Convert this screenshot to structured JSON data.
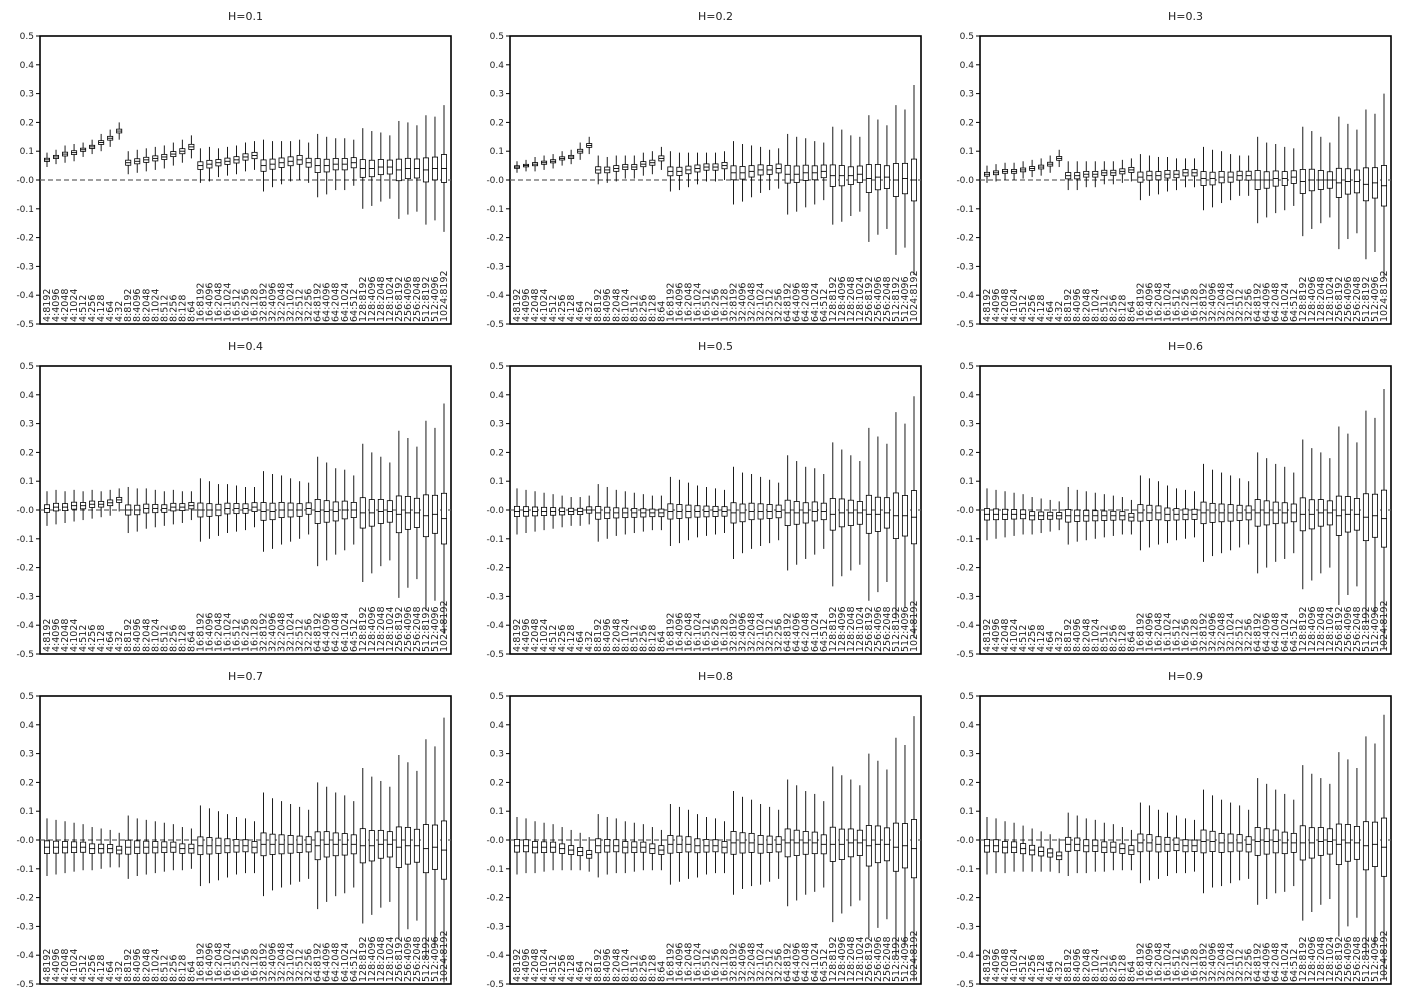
{
  "figure": {
    "background": "#ffffff",
    "ink_color": "#000000",
    "zero_line_color": "#666666"
  },
  "chart_data": {
    "type": "boxplot",
    "grid": false,
    "legend": "none",
    "ylim": [
      -0.5,
      0.5
    ],
    "yticks": [
      -0.5,
      -0.4,
      -0.3,
      -0.2,
      -0.1,
      0.0,
      0.1,
      0.2,
      0.3,
      0.4,
      0.5
    ],
    "ytick_labels": [
      "-0.5",
      "-0.4",
      "-0.3",
      "-0.2",
      "-0.1",
      "-0.0",
      "0.1",
      "0.2",
      "0.3",
      "0.4",
      "0.5"
    ],
    "reference_line": {
      "y": 0.0,
      "style": "dashed"
    },
    "categories": [
      "4:8192",
      "4:4096",
      "4:2048",
      "4:1024",
      "4:512",
      "4:256",
      "4:128",
      "4:64",
      "4:32",
      "8:8192",
      "8:4096",
      "8:2048",
      "8:1024",
      "8:512",
      "8:256",
      "8:128",
      "8:64",
      "16:8192",
      "16:4096",
      "16:2048",
      "16:1024",
      "16:512",
      "16:256",
      "16:128",
      "32:8192",
      "32:4096",
      "32:2048",
      "32:1024",
      "32:512",
      "32:256",
      "64:8192",
      "64:4096",
      "64:2048",
      "64:1024",
      "64:512",
      "128:8192",
      "128:4096",
      "128:2048",
      "128:1024",
      "256:8192",
      "256:4096",
      "256:2048",
      "512:8192",
      "512:4096",
      "1024:8192"
    ],
    "panels": [
      {
        "title": "H=0.1",
        "medians": [
          0.07,
          0.08,
          0.09,
          0.095,
          0.105,
          0.115,
          0.13,
          0.145,
          0.17,
          0.06,
          0.065,
          0.07,
          0.075,
          0.08,
          0.09,
          0.1,
          0.115,
          0.05,
          0.055,
          0.06,
          0.065,
          0.07,
          0.08,
          0.085,
          0.05,
          0.055,
          0.06,
          0.065,
          0.07,
          0.06,
          0.05,
          0.05,
          0.055,
          0.055,
          0.06,
          0.04,
          0.04,
          0.045,
          0.045,
          0.035,
          0.04,
          0.04,
          0.035,
          0.04,
          0.04
        ],
        "spreads": [
          0.025,
          0.025,
          0.03,
          0.03,
          0.025,
          0.025,
          0.03,
          0.03,
          0.03,
          0.04,
          0.04,
          0.04,
          0.04,
          0.04,
          0.04,
          0.04,
          0.04,
          0.06,
          0.06,
          0.05,
          0.05,
          0.05,
          0.05,
          0.05,
          0.09,
          0.08,
          0.075,
          0.07,
          0.07,
          0.07,
          0.11,
          0.1,
          0.09,
          0.09,
          0.08,
          0.14,
          0.13,
          0.12,
          0.11,
          0.17,
          0.16,
          0.15,
          0.19,
          0.18,
          0.22
        ]
      },
      {
        "title": "H=0.2",
        "medians": [
          0.045,
          0.05,
          0.055,
          0.06,
          0.065,
          0.075,
          0.08,
          0.1,
          0.12,
          0.035,
          0.035,
          0.04,
          0.045,
          0.045,
          0.055,
          0.06,
          0.075,
          0.03,
          0.03,
          0.035,
          0.04,
          0.045,
          0.045,
          0.05,
          0.025,
          0.025,
          0.03,
          0.035,
          0.035,
          0.04,
          0.02,
          0.02,
          0.025,
          0.025,
          0.03,
          0.015,
          0.015,
          0.015,
          0.02,
          0.005,
          0.01,
          0.01,
          0.0,
          0.005,
          0.0
        ],
        "spreads": [
          0.02,
          0.02,
          0.025,
          0.025,
          0.025,
          0.025,
          0.025,
          0.03,
          0.03,
          0.05,
          0.045,
          0.045,
          0.04,
          0.04,
          0.04,
          0.04,
          0.04,
          0.07,
          0.065,
          0.06,
          0.055,
          0.05,
          0.05,
          0.05,
          0.11,
          0.1,
          0.09,
          0.08,
          0.07,
          0.07,
          0.14,
          0.13,
          0.12,
          0.11,
          0.1,
          0.17,
          0.16,
          0.14,
          0.13,
          0.22,
          0.2,
          0.18,
          0.26,
          0.24,
          0.33
        ]
      },
      {
        "title": "H=0.3",
        "medians": [
          0.02,
          0.025,
          0.03,
          0.03,
          0.035,
          0.04,
          0.045,
          0.055,
          0.075,
          0.015,
          0.015,
          0.02,
          0.02,
          0.025,
          0.025,
          0.03,
          0.035,
          0.01,
          0.015,
          0.015,
          0.02,
          0.02,
          0.025,
          0.025,
          0.005,
          0.005,
          0.01,
          0.01,
          0.015,
          0.015,
          0.0,
          0.0,
          0.005,
          0.005,
          0.01,
          -0.005,
          0.0,
          0.0,
          0.0,
          -0.01,
          -0.005,
          -0.005,
          -0.015,
          -0.01,
          -0.02
        ],
        "spreads": [
          0.03,
          0.03,
          0.03,
          0.03,
          0.03,
          0.03,
          0.03,
          0.03,
          0.03,
          0.05,
          0.05,
          0.045,
          0.045,
          0.04,
          0.04,
          0.04,
          0.04,
          0.08,
          0.07,
          0.065,
          0.06,
          0.055,
          0.05,
          0.05,
          0.11,
          0.1,
          0.09,
          0.08,
          0.07,
          0.07,
          0.15,
          0.13,
          0.12,
          0.11,
          0.1,
          0.19,
          0.17,
          0.15,
          0.13,
          0.23,
          0.2,
          0.18,
          0.26,
          0.24,
          0.32
        ]
      },
      {
        "title": "H=0.4",
        "medians": [
          0.005,
          0.01,
          0.01,
          0.015,
          0.015,
          0.02,
          0.02,
          0.025,
          0.035,
          0.0,
          0.0,
          0.005,
          0.005,
          0.005,
          0.01,
          0.01,
          0.015,
          0.0,
          0.0,
          0.0,
          0.005,
          0.005,
          0.005,
          0.01,
          -0.005,
          -0.005,
          0.0,
          0.0,
          0.0,
          0.005,
          -0.005,
          -0.005,
          -0.005,
          0.0,
          0.0,
          -0.01,
          -0.01,
          -0.005,
          -0.005,
          -0.015,
          -0.01,
          -0.01,
          -0.02,
          -0.015,
          -0.03
        ],
        "spreads": [
          0.06,
          0.06,
          0.055,
          0.055,
          0.05,
          0.05,
          0.045,
          0.045,
          0.04,
          0.08,
          0.075,
          0.07,
          0.065,
          0.06,
          0.06,
          0.055,
          0.05,
          0.11,
          0.1,
          0.09,
          0.085,
          0.08,
          0.075,
          0.07,
          0.14,
          0.13,
          0.12,
          0.11,
          0.1,
          0.09,
          0.19,
          0.17,
          0.15,
          0.14,
          0.12,
          0.24,
          0.21,
          0.19,
          0.17,
          0.29,
          0.26,
          0.23,
          0.33,
          0.3,
          0.4
        ]
      },
      {
        "title": "H=0.5",
        "medians": [
          -0.005,
          -0.005,
          -0.005,
          -0.005,
          -0.005,
          -0.005,
          -0.005,
          -0.005,
          0.0,
          -0.01,
          -0.01,
          -0.01,
          -0.01,
          -0.01,
          -0.01,
          -0.01,
          -0.01,
          -0.005,
          -0.005,
          -0.005,
          -0.005,
          -0.005,
          -0.005,
          -0.005,
          -0.01,
          -0.01,
          -0.005,
          -0.005,
          -0.005,
          -0.005,
          -0.01,
          -0.01,
          -0.01,
          -0.005,
          -0.005,
          -0.015,
          -0.01,
          -0.01,
          -0.01,
          -0.015,
          -0.015,
          -0.01,
          -0.02,
          -0.02,
          -0.025
        ],
        "spreads": [
          0.08,
          0.075,
          0.07,
          0.065,
          0.06,
          0.055,
          0.05,
          0.05,
          0.05,
          0.1,
          0.09,
          0.08,
          0.075,
          0.07,
          0.065,
          0.06,
          0.06,
          0.12,
          0.11,
          0.1,
          0.09,
          0.085,
          0.08,
          0.075,
          0.16,
          0.14,
          0.13,
          0.12,
          0.11,
          0.1,
          0.2,
          0.18,
          0.16,
          0.15,
          0.13,
          0.25,
          0.22,
          0.2,
          0.18,
          0.3,
          0.27,
          0.24,
          0.36,
          0.32,
          0.42
        ]
      },
      {
        "title": "H=0.6",
        "medians": [
          -0.015,
          -0.015,
          -0.015,
          -0.015,
          -0.015,
          -0.02,
          -0.02,
          -0.02,
          -0.02,
          -0.02,
          -0.02,
          -0.02,
          -0.02,
          -0.02,
          -0.02,
          -0.02,
          -0.025,
          -0.01,
          -0.01,
          -0.01,
          -0.015,
          -0.015,
          -0.015,
          -0.015,
          -0.01,
          -0.01,
          -0.01,
          -0.01,
          -0.01,
          -0.01,
          -0.01,
          -0.01,
          -0.01,
          -0.01,
          -0.01,
          -0.015,
          -0.015,
          -0.01,
          -0.01,
          -0.02,
          -0.015,
          -0.015,
          -0.025,
          -0.02,
          -0.03
        ],
        "spreads": [
          0.09,
          0.085,
          0.08,
          0.075,
          0.07,
          0.065,
          0.06,
          0.055,
          0.05,
          0.1,
          0.09,
          0.085,
          0.08,
          0.075,
          0.07,
          0.065,
          0.06,
          0.13,
          0.12,
          0.11,
          0.1,
          0.09,
          0.085,
          0.08,
          0.17,
          0.15,
          0.14,
          0.13,
          0.12,
          0.11,
          0.21,
          0.19,
          0.17,
          0.16,
          0.14,
          0.26,
          0.23,
          0.21,
          0.19,
          0.31,
          0.28,
          0.25,
          0.37,
          0.34,
          0.45
        ]
      },
      {
        "title": "H=0.7",
        "medians": [
          -0.025,
          -0.025,
          -0.025,
          -0.025,
          -0.025,
          -0.03,
          -0.03,
          -0.03,
          -0.035,
          -0.025,
          -0.025,
          -0.025,
          -0.025,
          -0.025,
          -0.025,
          -0.03,
          -0.03,
          -0.02,
          -0.02,
          -0.02,
          -0.02,
          -0.02,
          -0.02,
          -0.025,
          -0.015,
          -0.015,
          -0.015,
          -0.015,
          -0.015,
          -0.015,
          -0.02,
          -0.015,
          -0.015,
          -0.015,
          -0.015,
          -0.02,
          -0.02,
          -0.015,
          -0.015,
          -0.025,
          -0.02,
          -0.02,
          -0.03,
          -0.025,
          -0.035
        ],
        "spreads": [
          0.1,
          0.095,
          0.09,
          0.085,
          0.08,
          0.075,
          0.07,
          0.065,
          0.06,
          0.11,
          0.1,
          0.095,
          0.09,
          0.085,
          0.08,
          0.075,
          0.07,
          0.14,
          0.13,
          0.12,
          0.11,
          0.1,
          0.095,
          0.09,
          0.18,
          0.16,
          0.15,
          0.14,
          0.13,
          0.12,
          0.22,
          0.2,
          0.18,
          0.17,
          0.15,
          0.27,
          0.24,
          0.22,
          0.2,
          0.32,
          0.29,
          0.26,
          0.38,
          0.35,
          0.46
        ]
      },
      {
        "title": "H=0.8",
        "medians": [
          -0.02,
          -0.02,
          -0.025,
          -0.025,
          -0.025,
          -0.03,
          -0.035,
          -0.04,
          -0.05,
          -0.02,
          -0.02,
          -0.02,
          -0.025,
          -0.025,
          -0.025,
          -0.03,
          -0.035,
          -0.015,
          -0.015,
          -0.015,
          -0.02,
          -0.02,
          -0.02,
          -0.025,
          -0.01,
          -0.01,
          -0.01,
          -0.015,
          -0.015,
          -0.015,
          -0.01,
          -0.01,
          -0.01,
          -0.01,
          -0.015,
          -0.015,
          -0.015,
          -0.01,
          -0.01,
          -0.02,
          -0.015,
          -0.015,
          -0.025,
          -0.02,
          -0.03
        ],
        "spreads": [
          0.1,
          0.095,
          0.09,
          0.085,
          0.08,
          0.075,
          0.07,
          0.065,
          0.06,
          0.11,
          0.1,
          0.095,
          0.09,
          0.085,
          0.08,
          0.075,
          0.07,
          0.14,
          0.13,
          0.12,
          0.11,
          0.1,
          0.095,
          0.09,
          0.18,
          0.16,
          0.15,
          0.14,
          0.13,
          0.12,
          0.22,
          0.2,
          0.18,
          0.17,
          0.15,
          0.27,
          0.24,
          0.22,
          0.2,
          0.32,
          0.29,
          0.26,
          0.38,
          0.35,
          0.46
        ]
      },
      {
        "title": "H=0.9",
        "medians": [
          -0.02,
          -0.02,
          -0.025,
          -0.025,
          -0.03,
          -0.035,
          -0.04,
          -0.045,
          -0.055,
          -0.015,
          -0.015,
          -0.02,
          -0.02,
          -0.025,
          -0.025,
          -0.03,
          -0.035,
          -0.01,
          -0.01,
          -0.015,
          -0.015,
          -0.015,
          -0.02,
          -0.02,
          -0.005,
          -0.005,
          -0.01,
          -0.01,
          -0.01,
          -0.015,
          -0.005,
          -0.005,
          -0.005,
          -0.01,
          -0.01,
          -0.01,
          -0.01,
          -0.005,
          -0.005,
          -0.015,
          -0.01,
          -0.01,
          -0.02,
          -0.015,
          -0.025
        ],
        "spreads": [
          0.1,
          0.095,
          0.09,
          0.085,
          0.08,
          0.075,
          0.07,
          0.065,
          0.06,
          0.11,
          0.1,
          0.095,
          0.09,
          0.085,
          0.08,
          0.075,
          0.07,
          0.14,
          0.13,
          0.12,
          0.11,
          0.1,
          0.095,
          0.09,
          0.18,
          0.16,
          0.15,
          0.14,
          0.13,
          0.12,
          0.22,
          0.2,
          0.18,
          0.17,
          0.15,
          0.27,
          0.24,
          0.22,
          0.2,
          0.32,
          0.29,
          0.26,
          0.38,
          0.35,
          0.46
        ]
      }
    ]
  }
}
